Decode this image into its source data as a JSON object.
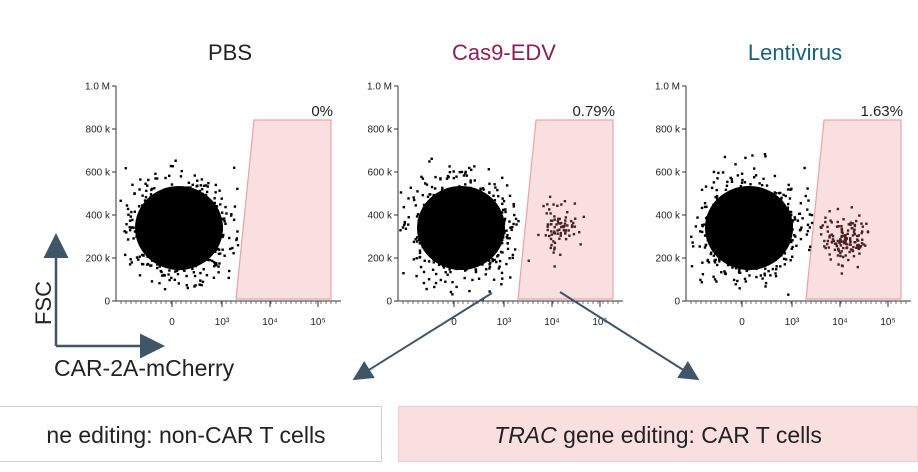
{
  "chart_data": [
    {
      "type": "scatter",
      "title": "PBS",
      "gate_percent": "0%",
      "y_ticks": [
        "1.0 M",
        "800 k",
        "600 k",
        "400 k",
        "200 k",
        "0"
      ],
      "x_ticks": [
        "0",
        "10³",
        "10⁴",
        "10⁵"
      ],
      "gated_population": "none"
    },
    {
      "type": "scatter",
      "title": "Cas9-EDV",
      "gate_percent": "0.79%",
      "y_ticks": [
        "1.0 M",
        "800 k",
        "600 k",
        "400 k",
        "200 k",
        "0"
      ],
      "x_ticks": [
        "0",
        "10³",
        "10⁴",
        "10⁵"
      ],
      "gated_population": "small"
    },
    {
      "type": "scatter",
      "title": "Lentivirus",
      "gate_percent": "1.63%",
      "y_ticks": [
        "1.0 M",
        "800 k",
        "600 k",
        "400 k",
        "200 k",
        "0"
      ],
      "x_ticks": [
        "0",
        "10³",
        "10⁴",
        "10⁵"
      ],
      "gated_population": "larger"
    }
  ],
  "axes": {
    "y": "FSC",
    "x": "CAR-2A-mCherry"
  },
  "boxes": {
    "left": "ne editing: non-CAR T cells",
    "right_italic": "TRAC",
    "right_rest": " gene editing: CAR T cells"
  },
  "colors": {
    "pbs_title": "#222222",
    "edv_title": "#8b1f55",
    "lenti_title": "#1b5f7c",
    "gate_fill": "#f9dfe0",
    "gate_stroke": "#e8a3a8",
    "arrow": "#3f5568"
  }
}
